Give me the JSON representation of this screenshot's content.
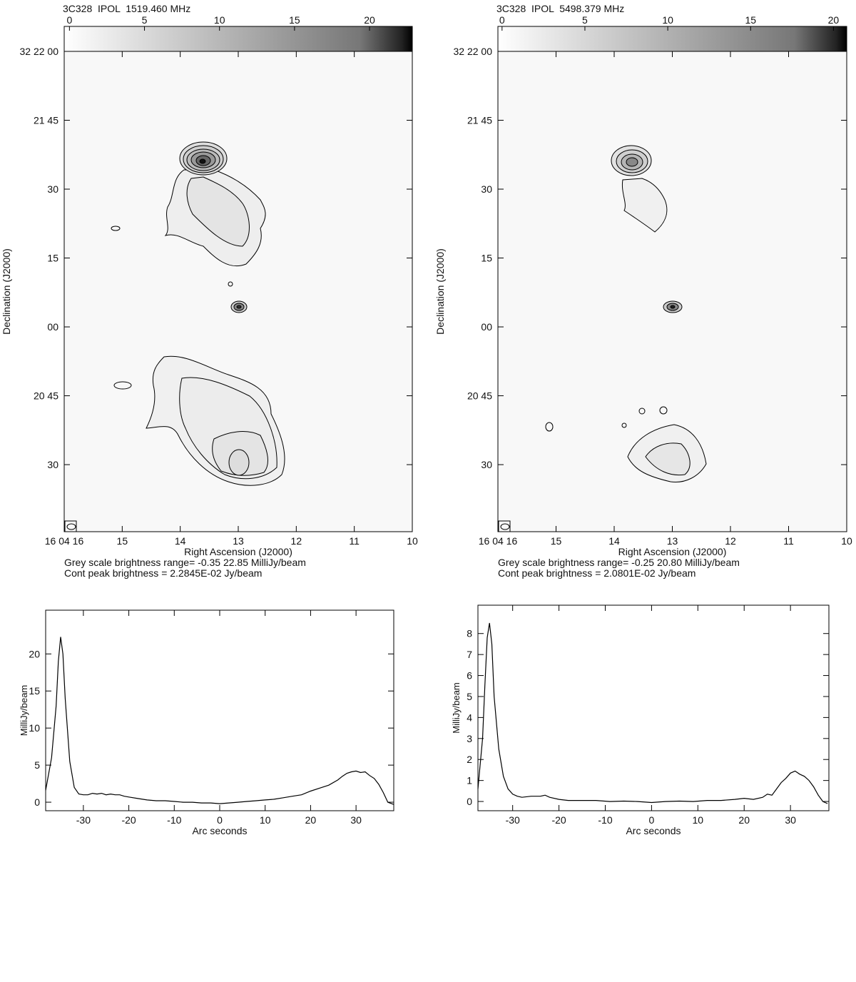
{
  "chart_data": [
    {
      "type": "map",
      "title": "3C328  IPOL  1519.460 MHz",
      "xlabel": "Right Ascension (J2000)",
      "ylabel": "Declination (J2000)",
      "notes": [
        "Grey scale brightness range= -0.35 22.85 MilliJy/beam",
        "Cont peak brightness = 2.2845E-02 Jy/beam"
      ],
      "xlim": [
        16,
        10
      ],
      "xticks": [
        {
          "value": 16,
          "label": "16 04 16"
        },
        15,
        14,
        13,
        12,
        11,
        10
      ],
      "ylim": [
        15.4,
        120
      ],
      "yticks": [
        {
          "value": 120,
          "label": "32 22 00"
        },
        {
          "value": 105,
          "label": "21 45"
        },
        {
          "value": 90,
          "label": "30"
        },
        {
          "value": 75,
          "label": "15"
        },
        {
          "value": 60,
          "label": "00"
        },
        {
          "value": 45,
          "label": "20 45"
        },
        30
      ],
      "colorbar_lim": [
        -0.35,
        22.85
      ],
      "colorbar_ticks": [
        0,
        5,
        10,
        15,
        20
      ]
    },
    {
      "type": "map",
      "title": "3C328  IPOL  5498.379 MHz",
      "xlabel": "Right Ascension (J2000)",
      "ylabel": "Declination (J2000)",
      "notes": [
        "Grey scale brightness range= -0.25 20.80 MilliJy/beam",
        "Cont peak brightness = 2.0801E-02 Jy/beam"
      ],
      "xlim": [
        16,
        10
      ],
      "xticks": [
        {
          "value": 16,
          "label": "16 04 16"
        },
        15,
        14,
        13,
        12,
        11,
        10
      ],
      "ylim": [
        15.4,
        120
      ],
      "yticks": [
        {
          "value": 120,
          "label": "32 22 00"
        },
        {
          "value": 105,
          "label": "21 45"
        },
        {
          "value": 90,
          "label": "30"
        },
        {
          "value": 75,
          "label": "15"
        },
        {
          "value": 60,
          "label": "00"
        },
        {
          "value": 45,
          "label": "20 45"
        },
        30
      ],
      "colorbar_lim": [
        -0.25,
        20.8
      ],
      "colorbar_ticks": [
        0,
        5,
        10,
        15,
        20
      ]
    },
    {
      "type": "line",
      "xlabel": "Arc seconds",
      "ylabel": "MilliJy/beam",
      "x": [
        -38.3,
        -37,
        -36,
        -35.5,
        -35,
        -34.5,
        -34,
        -33,
        -32,
        -31,
        -30,
        -29,
        -28,
        -27,
        -26,
        -25,
        -24,
        -23,
        -22,
        -21,
        -20,
        -18,
        -16,
        -14,
        -12,
        -10,
        -8,
        -6,
        -4,
        -2,
        0,
        2,
        4,
        6,
        8,
        10,
        12,
        14,
        16,
        18,
        20,
        22,
        24,
        26,
        27,
        28,
        29,
        30,
        31,
        32,
        33,
        34,
        35,
        36,
        37,
        38.3
      ],
      "values": [
        1.6,
        6,
        13,
        19,
        22.3,
        20,
        14,
        5.5,
        2,
        1.1,
        1,
        1,
        1.2,
        1.1,
        1.2,
        1,
        1.1,
        1,
        1,
        0.8,
        0.7,
        0.5,
        0.3,
        0.2,
        0.2,
        0.1,
        0,
        0,
        -0.1,
        -0.1,
        -0.2,
        -0.1,
        0,
        0.1,
        0.2,
        0.3,
        0.4,
        0.6,
        0.8,
        1,
        1.5,
        1.9,
        2.3,
        3,
        3.5,
        3.9,
        4.1,
        4.2,
        4,
        4.1,
        3.6,
        3.2,
        2.4,
        1.3,
        0,
        -0.3
      ],
      "xlim": [
        -38.3,
        38.3
      ],
      "xticks": [
        -30,
        -20,
        -10,
        0,
        10,
        20,
        30
      ],
      "ylim": [
        -1.15,
        25.9
      ],
      "yticks": [
        0,
        5,
        10,
        15,
        20
      ],
      "color": "#000000"
    },
    {
      "type": "line",
      "xlabel": "Arc seconds",
      "ylabel": "MilliJy/beam",
      "x": [
        -37.5,
        -36.5,
        -36,
        -35.5,
        -35,
        -34.5,
        -34,
        -33,
        -32,
        -31,
        -30,
        -29,
        -28,
        -26,
        -24,
        -23,
        -22,
        -20,
        -18,
        -15,
        -12,
        -9,
        -6,
        -3,
        0,
        3,
        6,
        9,
        12,
        15,
        18,
        20,
        22,
        24,
        25,
        26,
        27,
        28,
        29,
        30,
        31,
        32,
        33,
        34,
        35,
        36,
        37,
        38
      ],
      "values": [
        0.6,
        3,
        5.5,
        7.8,
        8.5,
        7.5,
        5,
        2.5,
        1.2,
        0.6,
        0.35,
        0.25,
        0.2,
        0.25,
        0.25,
        0.3,
        0.2,
        0.1,
        0.05,
        0.05,
        0.05,
        0,
        0.02,
        0,
        -0.05,
        0,
        0.02,
        0,
        0.05,
        0.05,
        0.1,
        0.15,
        0.1,
        0.2,
        0.35,
        0.3,
        0.6,
        0.9,
        1.1,
        1.35,
        1.45,
        1.3,
        1.2,
        1,
        0.7,
        0.3,
        0,
        -0.1
      ],
      "xlim": [
        -37.5,
        38.3
      ],
      "xticks": [
        -30,
        -20,
        -10,
        0,
        10,
        20,
        30
      ],
      "ylim": [
        -0.44,
        9.35
      ],
      "yticks": [
        0,
        1,
        2,
        3,
        4,
        5,
        6,
        7,
        8
      ],
      "color": "#000000"
    }
  ]
}
